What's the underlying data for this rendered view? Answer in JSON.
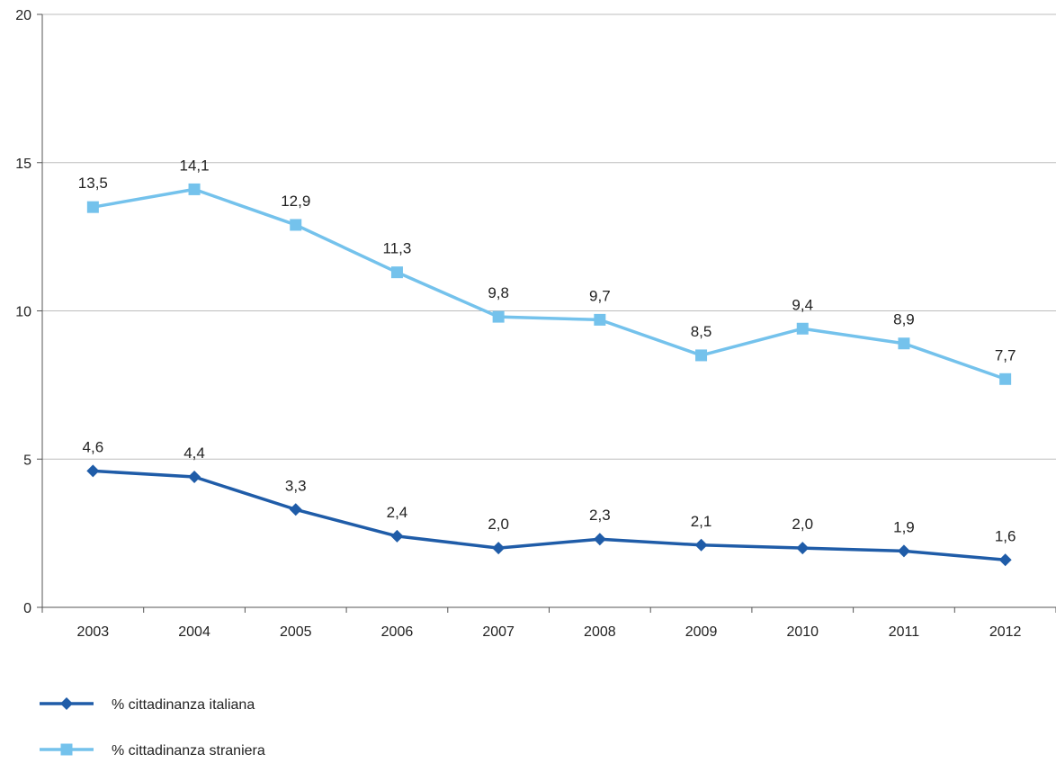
{
  "chart_data": {
    "type": "line",
    "title": "",
    "xlabel": "",
    "ylabel": "",
    "categories": [
      "2003",
      "2004",
      "2005",
      "2006",
      "2007",
      "2008",
      "2009",
      "2010",
      "2011",
      "2012"
    ],
    "ylim": [
      0,
      20
    ],
    "yticks": [
      "0",
      "5",
      "10",
      "15",
      "20"
    ],
    "grid": "horizontal",
    "legend_position": "bottom-left",
    "series": [
      {
        "name": "% cittadinanza italiana",
        "values": [
          4.6,
          4.4,
          3.3,
          2.4,
          2.0,
          2.3,
          2.1,
          2.0,
          1.9,
          1.6
        ],
        "labels": [
          "4,6",
          "4,4",
          "3,3",
          "2,4",
          "2,0",
          "2,3",
          "2,1",
          "2,0",
          "1,9",
          "1,6"
        ],
        "color": "#1f5ca8",
        "marker": "diamond"
      },
      {
        "name": "% cittadinanza straniera",
        "values": [
          13.5,
          14.1,
          12.9,
          11.3,
          9.8,
          9.7,
          8.5,
          9.4,
          8.9,
          7.7
        ],
        "labels": [
          "13,5",
          "14,1",
          "12,9",
          "11,3",
          "9,8",
          "9,7",
          "8,5",
          "9,4",
          "8,9",
          "7,7"
        ],
        "color": "#74c2ec",
        "marker": "square"
      }
    ]
  }
}
